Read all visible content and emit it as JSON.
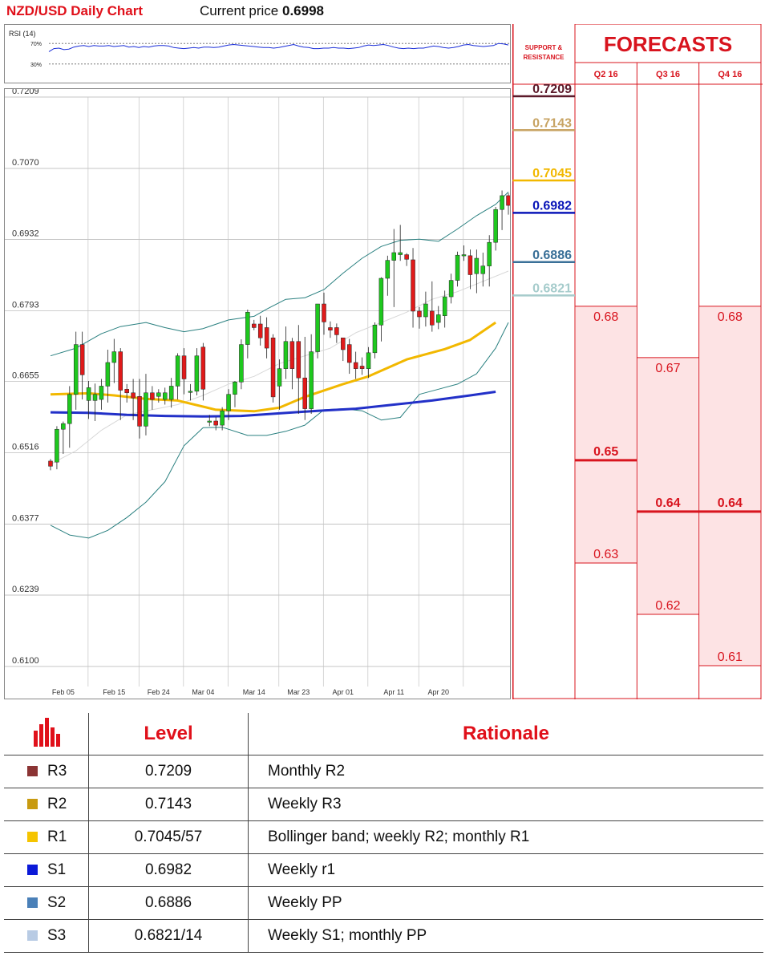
{
  "header": {
    "title": "NZD/USD Daily Chart",
    "price_label": "Current price",
    "price_value": "0.6998"
  },
  "rsi": {
    "label": "RSI (14)",
    "level_high": "70%",
    "level_low": "30%",
    "values": [
      54,
      60,
      61,
      58,
      59,
      63,
      65,
      66,
      64,
      66,
      65,
      65,
      66,
      64,
      65,
      66,
      63,
      64,
      62,
      64,
      63,
      65,
      66,
      66,
      65,
      62,
      61,
      60,
      61,
      62,
      61,
      63,
      63,
      62,
      63,
      65,
      67,
      68,
      67,
      66,
      65,
      64,
      63,
      62,
      62,
      61,
      62,
      64,
      66,
      68,
      65,
      63,
      62,
      60,
      60,
      61,
      61,
      62,
      61,
      61,
      60,
      61,
      62,
      65,
      67,
      66,
      67,
      68,
      66,
      63,
      61,
      60,
      61,
      60,
      61,
      61,
      63,
      65,
      64,
      62,
      61,
      62,
      64,
      67,
      68,
      66,
      65,
      64,
      65,
      66,
      70,
      69,
      67
    ]
  },
  "chart_data": {
    "type": "candlestick",
    "title": "NZD/USD Daily Chart",
    "ylim": [
      0.61,
      0.7209
    ],
    "y_ticks": [
      "0.7209",
      "0.7070",
      "0.6932",
      "0.6793",
      "0.6655",
      "0.6516",
      "0.6377",
      "0.6239",
      "0.6100"
    ],
    "x_ticks": [
      {
        "label": "Feb 05",
        "index": 2
      },
      {
        "label": "Feb 15",
        "index": 10
      },
      {
        "label": "Feb 24",
        "index": 17
      },
      {
        "label": "Mar 04",
        "index": 24
      },
      {
        "label": "Mar 14",
        "index": 32
      },
      {
        "label": "Mar 23",
        "index": 39
      },
      {
        "label": "Apr 01",
        "index": 46
      },
      {
        "label": "Apr 11",
        "index": 54
      },
      {
        "label": "Apr 20",
        "index": 61
      }
    ],
    "candles": [
      [
        0.65,
        0.649,
        0.6504,
        0.6482
      ],
      [
        0.6498,
        0.6562,
        0.6568,
        0.6484
      ],
      [
        0.6562,
        0.6573,
        0.6577,
        0.6514
      ],
      [
        0.6573,
        0.663,
        0.6646,
        0.6526
      ],
      [
        0.663,
        0.6727,
        0.6752,
        0.66
      ],
      [
        0.6727,
        0.6668,
        0.6752,
        0.662
      ],
      [
        0.6618,
        0.6643,
        0.6656,
        0.6582
      ],
      [
        0.6618,
        0.663,
        0.6651,
        0.6578
      ],
      [
        0.662,
        0.6646,
        0.666,
        0.66
      ],
      [
        0.6646,
        0.6692,
        0.6717,
        0.6614
      ],
      [
        0.6692,
        0.6713,
        0.6738,
        0.6652
      ],
      [
        0.6713,
        0.6638,
        0.672,
        0.658
      ],
      [
        0.664,
        0.6633,
        0.665,
        0.6614
      ],
      [
        0.6633,
        0.6623,
        0.666,
        0.658
      ],
      [
        0.6626,
        0.6568,
        0.666,
        0.6544
      ],
      [
        0.6568,
        0.6633,
        0.667,
        0.655
      ],
      [
        0.6633,
        0.662,
        0.6646,
        0.66
      ],
      [
        0.6626,
        0.6633,
        0.664,
        0.6614
      ],
      [
        0.662,
        0.6633,
        0.6643,
        0.661
      ],
      [
        0.662,
        0.6646,
        0.6662,
        0.6604
      ],
      [
        0.6646,
        0.6705,
        0.671,
        0.662
      ],
      [
        0.6705,
        0.666,
        0.672,
        0.663
      ],
      [
        0.6636,
        0.6636,
        0.665,
        0.6618
      ],
      [
        0.6636,
        0.6705,
        0.672,
        0.6628
      ],
      [
        0.6722,
        0.664,
        0.673,
        0.6618
      ],
      [
        0.6578,
        0.6578,
        0.659,
        0.6568
      ],
      [
        0.6578,
        0.657,
        0.6586,
        0.656
      ],
      [
        0.657,
        0.6598,
        0.6605,
        0.656
      ],
      [
        0.6598,
        0.663,
        0.664,
        0.658
      ],
      [
        0.663,
        0.6654,
        0.6656,
        0.6605
      ],
      [
        0.6654,
        0.6727,
        0.6737,
        0.664
      ],
      [
        0.6727,
        0.679,
        0.6795,
        0.67
      ],
      [
        0.6767,
        0.676,
        0.6775,
        0.6755
      ],
      [
        0.6767,
        0.674,
        0.6783,
        0.6725
      ],
      [
        0.676,
        0.672,
        0.678,
        0.67
      ],
      [
        0.674,
        0.6625,
        0.6747,
        0.6614
      ],
      [
        0.6646,
        0.668,
        0.6698,
        0.66
      ],
      [
        0.668,
        0.6733,
        0.6762,
        0.666
      ],
      [
        0.6733,
        0.668,
        0.674,
        0.664
      ],
      [
        0.6733,
        0.6662,
        0.6765,
        0.6592
      ],
      [
        0.6662,
        0.6602,
        0.6742,
        0.658
      ],
      [
        0.6602,
        0.6713,
        0.6747,
        0.6592
      ],
      [
        0.6713,
        0.6806,
        0.6806,
        0.67
      ],
      [
        0.6806,
        0.6771,
        0.6828,
        0.6746
      ],
      [
        0.676,
        0.6755,
        0.6772,
        0.674
      ],
      [
        0.676,
        0.6746,
        0.6768,
        0.673
      ],
      [
        0.674,
        0.6717,
        0.674,
        0.6695
      ],
      [
        0.6727,
        0.6692,
        0.6738,
        0.667
      ],
      [
        0.6692,
        0.668,
        0.6713,
        0.666
      ],
      [
        0.6685,
        0.668,
        0.6702,
        0.6668
      ],
      [
        0.668,
        0.6711,
        0.6722,
        0.6662
      ],
      [
        0.6711,
        0.6765,
        0.677,
        0.67
      ],
      [
        0.6765,
        0.6856,
        0.6858,
        0.6733
      ],
      [
        0.6856,
        0.6891,
        0.69,
        0.6822
      ],
      [
        0.6891,
        0.6906,
        0.6952,
        0.68
      ],
      [
        0.6902,
        0.6906,
        0.696,
        0.689
      ],
      [
        0.6902,
        0.6893,
        0.6905,
        0.688
      ],
      [
        0.6892,
        0.6792,
        0.6915,
        0.676
      ],
      [
        0.6792,
        0.6781,
        0.68,
        0.6758
      ],
      [
        0.6781,
        0.6806,
        0.683,
        0.6762
      ],
      [
        0.6792,
        0.6765,
        0.685,
        0.6752
      ],
      [
        0.677,
        0.6785,
        0.6802,
        0.6757
      ],
      [
        0.6783,
        0.682,
        0.6832,
        0.676
      ],
      [
        0.682,
        0.6852,
        0.6865,
        0.6807
      ],
      [
        0.6852,
        0.6901,
        0.6908,
        0.684
      ],
      [
        0.6902,
        0.6902,
        0.692,
        0.689
      ],
      [
        0.69,
        0.6863,
        0.6912,
        0.6835
      ],
      [
        0.6865,
        0.6895,
        0.6912,
        0.6827
      ],
      [
        0.6865,
        0.688,
        0.6906,
        0.684
      ],
      [
        0.688,
        0.6926,
        0.694,
        0.684
      ],
      [
        0.6926,
        0.699,
        0.6995,
        0.691
      ],
      [
        0.699,
        0.7017,
        0.7027,
        0.695
      ],
      [
        0.7017,
        0.6998,
        0.7022,
        0.698
      ]
    ],
    "ma_yellow": [
      [
        0,
        0.663
      ],
      [
        6,
        0.6632
      ],
      [
        10,
        0.6628
      ],
      [
        15,
        0.6621
      ],
      [
        20,
        0.6618
      ],
      [
        26,
        0.66
      ],
      [
        32,
        0.6597
      ],
      [
        36,
        0.6604
      ],
      [
        40,
        0.6625
      ],
      [
        46,
        0.665
      ],
      [
        50,
        0.6665
      ],
      [
        56,
        0.6698
      ],
      [
        62,
        0.6718
      ],
      [
        66,
        0.6736
      ],
      [
        70,
        0.677
      ]
    ],
    "ma_blue": [
      [
        0,
        0.6595
      ],
      [
        6,
        0.6594
      ],
      [
        12,
        0.659
      ],
      [
        18,
        0.6588
      ],
      [
        24,
        0.6587
      ],
      [
        30,
        0.6588
      ],
      [
        36,
        0.6593
      ],
      [
        42,
        0.6598
      ],
      [
        48,
        0.6602
      ],
      [
        54,
        0.661
      ],
      [
        60,
        0.6618
      ],
      [
        66,
        0.6628
      ],
      [
        70,
        0.6635
      ]
    ],
    "bb_upper": [
      [
        0,
        0.6705
      ],
      [
        4,
        0.672
      ],
      [
        8,
        0.6748
      ],
      [
        11,
        0.6762
      ],
      [
        15,
        0.677
      ],
      [
        18,
        0.676
      ],
      [
        21,
        0.6752
      ],
      [
        24,
        0.6758
      ],
      [
        28,
        0.6775
      ],
      [
        32,
        0.6782
      ],
      [
        34,
        0.6796
      ],
      [
        37,
        0.6815
      ],
      [
        40,
        0.6818
      ],
      [
        43,
        0.6834
      ],
      [
        46,
        0.6866
      ],
      [
        49,
        0.6895
      ],
      [
        52,
        0.6918
      ],
      [
        55,
        0.693
      ],
      [
        58,
        0.6932
      ],
      [
        61,
        0.6928
      ],
      [
        64,
        0.6952
      ],
      [
        67,
        0.6978
      ],
      [
        70,
        0.7
      ],
      [
        72,
        0.7024
      ]
    ],
    "bb_lower": [
      [
        0,
        0.6375
      ],
      [
        3,
        0.6356
      ],
      [
        6,
        0.635
      ],
      [
        9,
        0.6365
      ],
      [
        12,
        0.639
      ],
      [
        15,
        0.642
      ],
      [
        18,
        0.646
      ],
      [
        21,
        0.653
      ],
      [
        24,
        0.6565
      ],
      [
        27,
        0.6566
      ],
      [
        31,
        0.655
      ],
      [
        34,
        0.655
      ],
      [
        37,
        0.6558
      ],
      [
        40,
        0.657
      ],
      [
        43,
        0.66
      ],
      [
        46,
        0.6602
      ],
      [
        49,
        0.6598
      ],
      [
        52,
        0.658
      ],
      [
        55,
        0.6585
      ],
      [
        58,
        0.663
      ],
      [
        61,
        0.664
      ],
      [
        64,
        0.665
      ],
      [
        67,
        0.667
      ],
      [
        70,
        0.672
      ],
      [
        72,
        0.677
      ]
    ],
    "bb_mid": [
      [
        0,
        0.6494
      ],
      [
        4,
        0.652
      ],
      [
        8,
        0.656
      ],
      [
        12,
        0.659
      ],
      [
        16,
        0.66
      ],
      [
        20,
        0.661
      ],
      [
        24,
        0.6628
      ],
      [
        28,
        0.665
      ],
      [
        32,
        0.6665
      ],
      [
        36,
        0.669
      ],
      [
        40,
        0.6705
      ],
      [
        44,
        0.672
      ],
      [
        48,
        0.675
      ],
      [
        52,
        0.677
      ],
      [
        56,
        0.679
      ],
      [
        60,
        0.6815
      ],
      [
        64,
        0.683
      ],
      [
        68,
        0.685
      ],
      [
        72,
        0.687
      ]
    ]
  },
  "levels_axis": {
    "title": "SUPPORT & RESISTANCE",
    "items": [
      {
        "value": "0.7209",
        "color": "#5c1a2a"
      },
      {
        "value": "0.7143",
        "color": "#c8a464"
      },
      {
        "value": "0.7045",
        "color": "#f2b800"
      },
      {
        "value": "0.6982",
        "color": "#0a16b8"
      },
      {
        "value": "0.6886",
        "color": "#3a7098"
      },
      {
        "value": "0.6821",
        "color": "#a6cccc"
      }
    ]
  },
  "forecasts": {
    "title": "FORECASTS",
    "columns": [
      {
        "label": "Q2 16",
        "high": "0.68",
        "mid": "0.65",
        "low": "0.63",
        "high_v": 0.68,
        "mid_v": 0.65,
        "low_v": 0.63
      },
      {
        "label": "Q3 16",
        "high": "0.67",
        "mid": "0.64",
        "low": "0.62",
        "high_v": 0.67,
        "mid_v": 0.64,
        "low_v": 0.62
      },
      {
        "label": "Q4 16",
        "high": "0.68",
        "mid": "0.64",
        "low": "0.61",
        "high_v": 0.68,
        "mid_v": 0.64,
        "low_v": 0.61
      }
    ]
  },
  "table": {
    "header_level": "Level",
    "header_rationale": "Rationale",
    "rows": [
      {
        "name": "R3",
        "level": "0.7209",
        "rationale": "Monthly R2",
        "color": "#8b3434"
      },
      {
        "name": "R2",
        "level": "0.7143",
        "rationale": "Weekly R3",
        "color": "#c89a10"
      },
      {
        "name": "R1",
        "level": "0.7045/57",
        "rationale": "Bollinger band; weekly R2; monthly R1",
        "color": "#f5c400"
      },
      {
        "name": "S1",
        "level": "0.6982",
        "rationale": "Weekly r1",
        "color": "#0b19d8"
      },
      {
        "name": "S2",
        "level": "0.6886",
        "rationale": "Weekly PP",
        "color": "#4a80b8"
      },
      {
        "name": "S3",
        "level": "0.6821/14",
        "rationale": "Weekly S1; monthly PP",
        "color": "#b8cbe4"
      }
    ]
  }
}
